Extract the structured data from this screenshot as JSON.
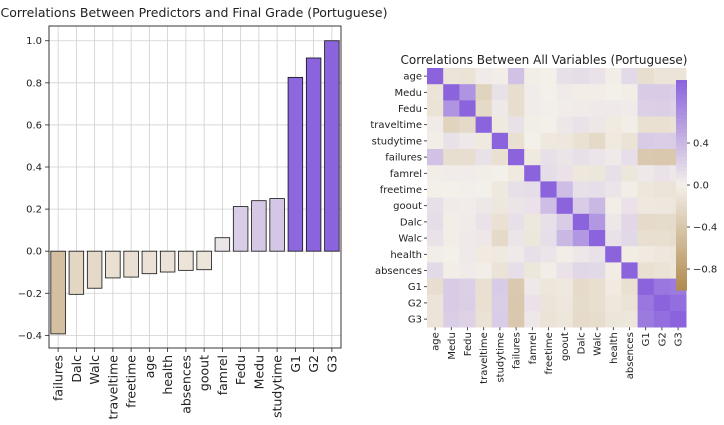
{
  "chart_data": [
    {
      "type": "bar",
      "title": "Correlations Between Predictors and Final Grade (Portuguese)",
      "xlabel": "",
      "ylabel": "",
      "categories": [
        "failures",
        "Dalc",
        "Walc",
        "traveltime",
        "freetime",
        "age",
        "health",
        "absences",
        "goout",
        "famrel",
        "Fedu",
        "Medu",
        "studytime",
        "G1",
        "G2",
        "G3"
      ],
      "values": [
        -0.393,
        -0.205,
        -0.176,
        -0.127,
        -0.123,
        -0.107,
        -0.099,
        -0.091,
        -0.088,
        0.064,
        0.212,
        0.24,
        0.25,
        0.826,
        0.918,
        1.0
      ],
      "ylim": [
        -0.46,
        1.07
      ],
      "yticks": [
        "−0.4",
        "−0.2",
        "0.0",
        "0.2",
        "0.4",
        "0.6",
        "0.8",
        "1.0"
      ],
      "grid": true,
      "colors": {
        "negative": "#b08a4e",
        "positive": "#8a63dd",
        "neutral": "#f3efe9",
        "edge": "#111111"
      }
    },
    {
      "type": "heatmap",
      "title": "Correlations Between All Variables (Portuguese)",
      "labels": [
        "age",
        "Medu",
        "Fedu",
        "traveltime",
        "studytime",
        "failures",
        "famrel",
        "freetime",
        "goout",
        "Dalc",
        "Walc",
        "health",
        "absences",
        "G1",
        "G2",
        "G3"
      ],
      "values": [
        [
          1.0,
          -0.11,
          -0.12,
          0.03,
          -0.01,
          0.32,
          -0.02,
          -0.0,
          0.11,
          0.13,
          0.09,
          -0.01,
          0.15,
          -0.17,
          -0.11,
          -0.11
        ],
        [
          -0.11,
          1.0,
          0.65,
          -0.27,
          0.1,
          -0.17,
          0.02,
          0.0,
          0.03,
          -0.01,
          -0.02,
          0.0,
          -0.01,
          0.26,
          0.26,
          0.24
        ],
        [
          -0.12,
          0.65,
          1.0,
          -0.21,
          0.05,
          -0.17,
          0.02,
          0.01,
          0.02,
          0.03,
          0.04,
          0.04,
          0.03,
          0.22,
          0.23,
          0.21
        ],
        [
          0.03,
          -0.27,
          -0.21,
          1.0,
          -0.06,
          0.1,
          -0.01,
          0.0,
          0.06,
          0.09,
          0.06,
          -0.05,
          -0.01,
          -0.15,
          -0.15,
          -0.13
        ],
        [
          -0.01,
          0.1,
          0.05,
          -0.06,
          1.0,
          -0.15,
          -0.0,
          -0.07,
          -0.08,
          -0.14,
          -0.21,
          -0.06,
          -0.12,
          0.26,
          0.24,
          0.25
        ],
        [
          0.32,
          -0.17,
          -0.17,
          0.1,
          -0.15,
          1.0,
          -0.06,
          0.11,
          0.07,
          0.11,
          0.08,
          0.04,
          0.12,
          -0.38,
          -0.39,
          -0.39
        ],
        [
          -0.02,
          0.02,
          0.02,
          -0.01,
          -0.0,
          -0.06,
          1.0,
          0.13,
          0.09,
          -0.08,
          -0.09,
          0.11,
          -0.09,
          0.05,
          0.09,
          0.06
        ],
        [
          -0.0,
          0.0,
          0.01,
          0.0,
          -0.07,
          0.11,
          0.13,
          1.0,
          0.35,
          0.11,
          0.12,
          0.08,
          -0.02,
          -0.09,
          -0.11,
          -0.12
        ],
        [
          0.11,
          0.03,
          0.02,
          0.06,
          -0.08,
          0.07,
          0.09,
          0.35,
          1.0,
          0.25,
          0.39,
          -0.02,
          0.09,
          -0.07,
          -0.08,
          -0.09
        ],
        [
          0.13,
          -0.01,
          0.03,
          0.09,
          -0.14,
          0.11,
          -0.08,
          0.11,
          0.25,
          1.0,
          0.62,
          0.06,
          0.17,
          -0.2,
          -0.19,
          -0.2
        ],
        [
          0.09,
          -0.02,
          0.04,
          0.06,
          -0.21,
          0.08,
          -0.09,
          0.12,
          0.39,
          0.62,
          1.0,
          0.1,
          0.16,
          -0.16,
          -0.16,
          -0.18
        ],
        [
          -0.01,
          0.0,
          0.04,
          -0.05,
          -0.06,
          0.04,
          0.11,
          0.08,
          -0.02,
          0.06,
          0.1,
          1.0,
          -0.03,
          -0.05,
          -0.08,
          -0.1
        ],
        [
          0.15,
          -0.01,
          0.03,
          -0.01,
          -0.12,
          0.12,
          -0.09,
          -0.02,
          0.09,
          0.17,
          0.16,
          -0.03,
          1.0,
          -0.15,
          -0.12,
          -0.09
        ],
        [
          -0.17,
          0.26,
          0.22,
          -0.15,
          0.26,
          -0.38,
          0.05,
          -0.09,
          -0.07,
          -0.2,
          -0.16,
          -0.05,
          -0.15,
          1.0,
          0.86,
          0.83
        ],
        [
          -0.11,
          0.26,
          0.23,
          -0.15,
          0.24,
          -0.39,
          0.09,
          -0.11,
          -0.08,
          -0.19,
          -0.16,
          -0.08,
          -0.12,
          0.86,
          1.0,
          0.92
        ],
        [
          -0.11,
          0.24,
          0.21,
          -0.13,
          0.25,
          -0.39,
          0.06,
          -0.12,
          -0.09,
          -0.2,
          -0.18,
          -0.1,
          -0.09,
          0.83,
          0.92,
          1.0
        ]
      ],
      "colorbar": {
        "range": [
          -1,
          1
        ],
        "ticks": [
          "0.4",
          "0.0",
          "−0.4",
          "−0.8"
        ],
        "tick_values": [
          0.4,
          0.0,
          -0.4,
          -0.8
        ]
      },
      "colors": {
        "negative": "#b08a4e",
        "positive": "#8a63dd",
        "neutral": "#f3efe9"
      }
    }
  ]
}
